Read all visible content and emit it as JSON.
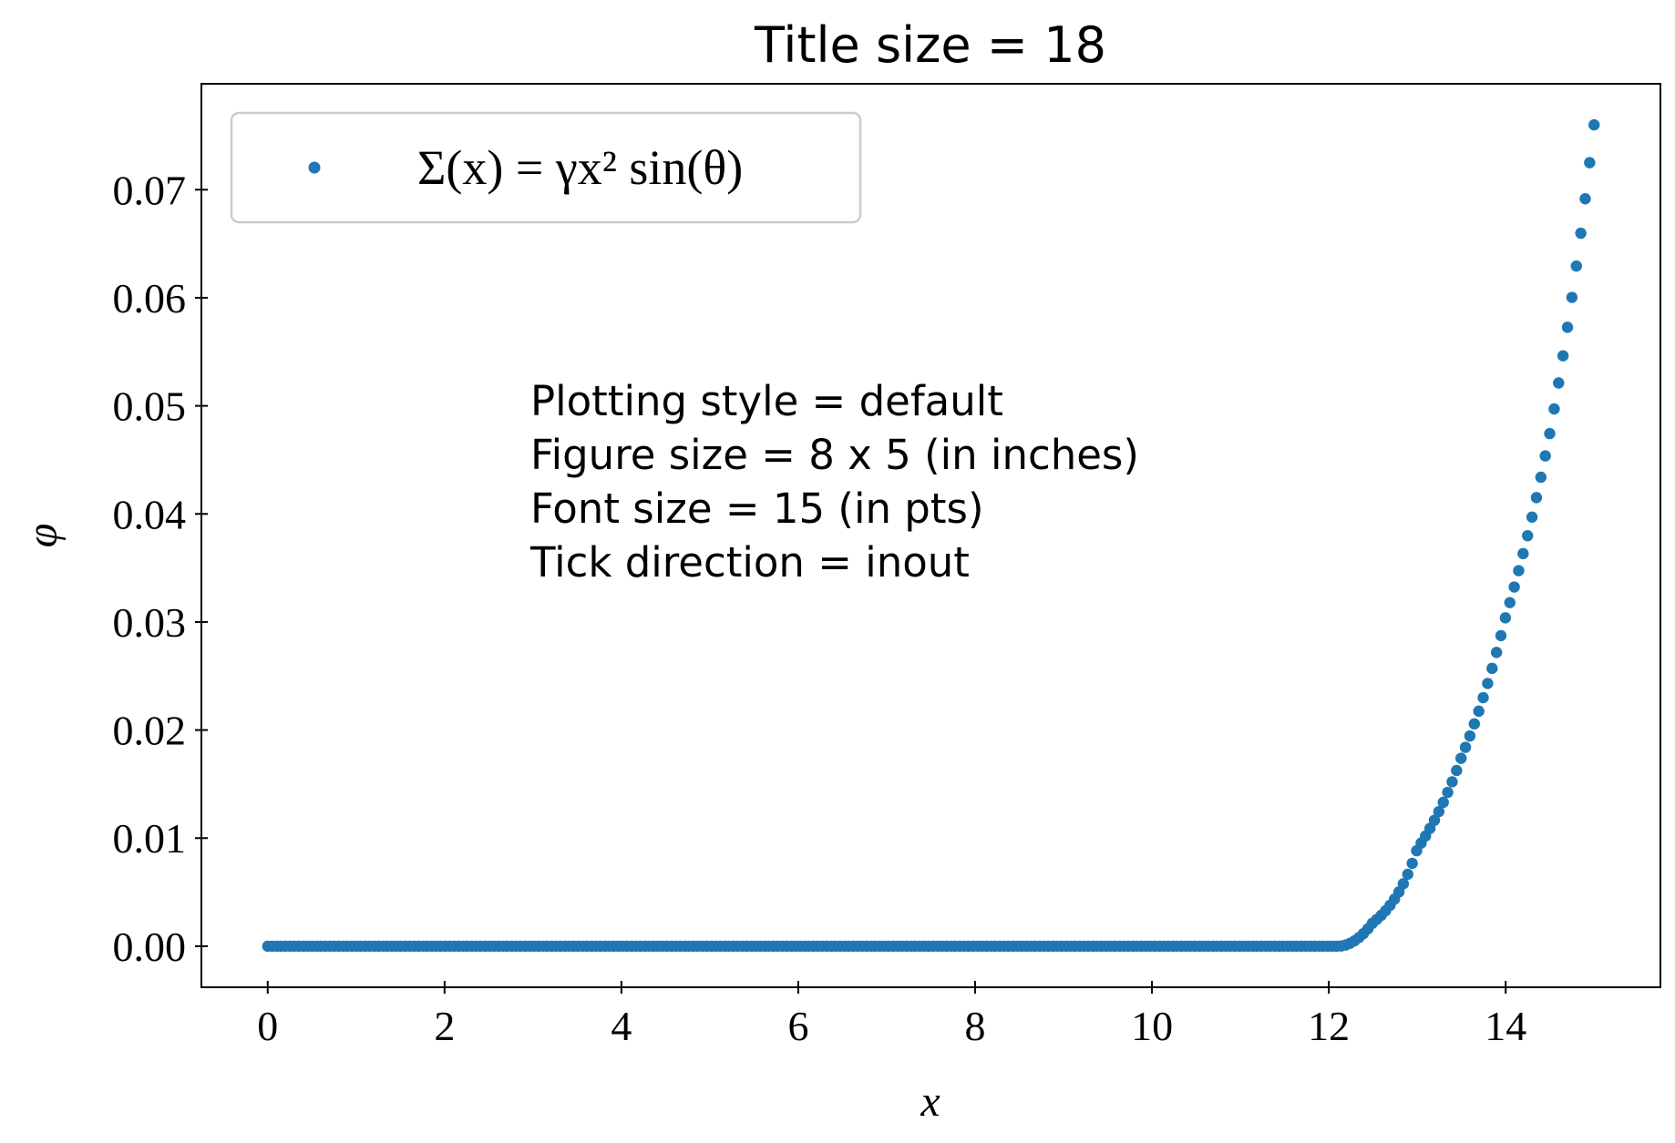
{
  "chart_data": {
    "type": "scatter",
    "title": "Title size = 18",
    "xlabel": "x",
    "ylabel": "φ",
    "xlim": [
      -0.75,
      15.75
    ],
    "ylim": [
      -0.0038,
      0.0798
    ],
    "xticks": [
      0,
      2,
      4,
      6,
      8,
      10,
      12,
      14
    ],
    "xtick_labels": [
      "0",
      "2",
      "4",
      "6",
      "8",
      "10",
      "12",
      "14"
    ],
    "yticks": [
      0.0,
      0.01,
      0.02,
      0.03,
      0.04,
      0.05,
      0.06,
      0.07
    ],
    "ytick_labels": [
      "0.00",
      "0.01",
      "0.02",
      "0.03",
      "0.04",
      "0.05",
      "0.06",
      "0.07"
    ],
    "grid": false,
    "legend_position": "top-left",
    "color": "#1f77b4",
    "series": [
      {
        "name": "Σ(x) = γx² sin(θ)",
        "x_range": [
          0,
          15
        ],
        "n_points": 300,
        "threshold_x": 12.1,
        "sampled_points": [
          {
            "x": 0,
            "y": 0.0
          },
          {
            "x": 12.0,
            "y": 0.0
          },
          {
            "x": 12.5,
            "y": 0.0022
          },
          {
            "x": 13.0,
            "y": 0.009
          },
          {
            "x": 13.5,
            "y": 0.0175
          },
          {
            "x": 14.0,
            "y": 0.0305
          },
          {
            "x": 14.5,
            "y": 0.0475
          },
          {
            "x": 15.0,
            "y": 0.076
          }
        ]
      }
    ],
    "annotations": [
      "Plotting style = default",
      "Figure size = 8 x 5 (in inches)",
      "Font size = 15 (in pts)",
      "Tick direction = inout"
    ]
  }
}
